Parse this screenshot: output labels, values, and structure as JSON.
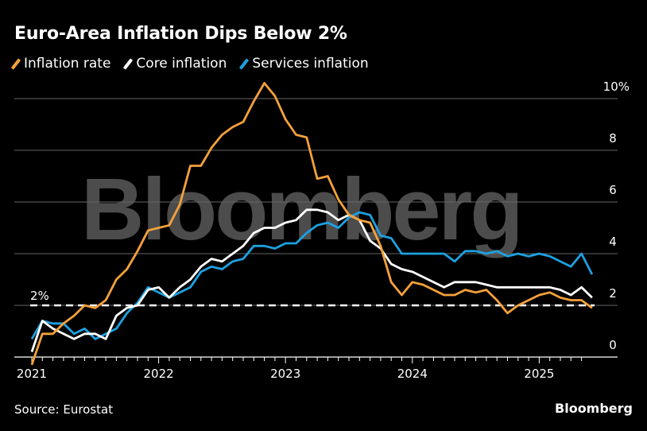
{
  "title": "Euro-Area Inflation Dips Below 2%",
  "legend": [
    {
      "label": "Inflation rate",
      "color": "#f5a13a"
    },
    {
      "label": "Core inflation",
      "color": "#ffffff"
    },
    {
      "label": "Services inflation",
      "color": "#1da1e2"
    }
  ],
  "watermark": "Bloomberg",
  "footer": {
    "source": "Source: Eurostat",
    "brand": "Bloomberg"
  },
  "chart_data": {
    "type": "line",
    "title": "Euro-Area Inflation Dips Below 2%",
    "xlabel": "",
    "ylabel": "",
    "x_start": "2020-12",
    "x_end": "2025-05",
    "x_ticks": [
      "2021",
      "2022",
      "2023",
      "2024",
      "2025"
    ],
    "y_ticks": [
      "0",
      "2",
      "4",
      "6",
      "8",
      "10%"
    ],
    "ylim": [
      0,
      10
    ],
    "grid": true,
    "legend_position": "top-left",
    "reference_line": {
      "value": 2,
      "label": "2%"
    },
    "series": [
      {
        "name": "Inflation rate",
        "color": "#f5a13a",
        "values": [
          -0.3,
          0.9,
          0.9,
          1.3,
          1.6,
          2.0,
          1.9,
          2.2,
          3.0,
          3.4,
          4.1,
          4.9,
          5.0,
          5.1,
          5.9,
          7.4,
          7.4,
          8.1,
          8.6,
          8.9,
          9.1,
          9.9,
          10.6,
          10.1,
          9.2,
          8.6,
          8.5,
          6.9,
          7.0,
          6.1,
          5.5,
          5.3,
          5.2,
          4.3,
          2.9,
          2.4,
          2.9,
          2.8,
          2.6,
          2.4,
          2.4,
          2.6,
          2.5,
          2.6,
          2.2,
          1.7,
          2.0,
          2.2,
          2.4,
          2.5,
          2.3,
          2.2,
          2.2,
          1.9
        ]
      },
      {
        "name": "Core inflation",
        "color": "#ffffff",
        "values": [
          0.2,
          1.4,
          1.1,
          0.9,
          0.7,
          0.9,
          0.9,
          0.7,
          1.6,
          1.9,
          2.0,
          2.6,
          2.7,
          2.3,
          2.7,
          3.0,
          3.5,
          3.8,
          3.7,
          4.0,
          4.3,
          4.8,
          5.0,
          5.0,
          5.2,
          5.3,
          5.7,
          5.7,
          5.6,
          5.3,
          5.5,
          5.3,
          4.5,
          4.2,
          3.6,
          3.4,
          3.3,
          3.1,
          2.9,
          2.7,
          2.9,
          2.9,
          2.9,
          2.8,
          2.7,
          2.7,
          2.7,
          2.7,
          2.7,
          2.7,
          2.6,
          2.4,
          2.7,
          2.3
        ]
      },
      {
        "name": "Services inflation",
        "color": "#1da1e2",
        "values": [
          0.7,
          1.4,
          1.3,
          1.3,
          0.9,
          1.1,
          0.7,
          0.9,
          1.1,
          1.7,
          2.1,
          2.7,
          2.5,
          2.3,
          2.5,
          2.7,
          3.3,
          3.5,
          3.4,
          3.7,
          3.8,
          4.3,
          4.3,
          4.2,
          4.4,
          4.4,
          4.8,
          5.1,
          5.2,
          5.0,
          5.4,
          5.6,
          5.5,
          4.7,
          4.6,
          4.0,
          4.0,
          4.0,
          4.0,
          4.0,
          3.7,
          4.1,
          4.1,
          4.0,
          4.1,
          3.9,
          4.0,
          3.9,
          4.0,
          3.9,
          3.7,
          3.5,
          4.0,
          3.2
        ]
      }
    ]
  }
}
